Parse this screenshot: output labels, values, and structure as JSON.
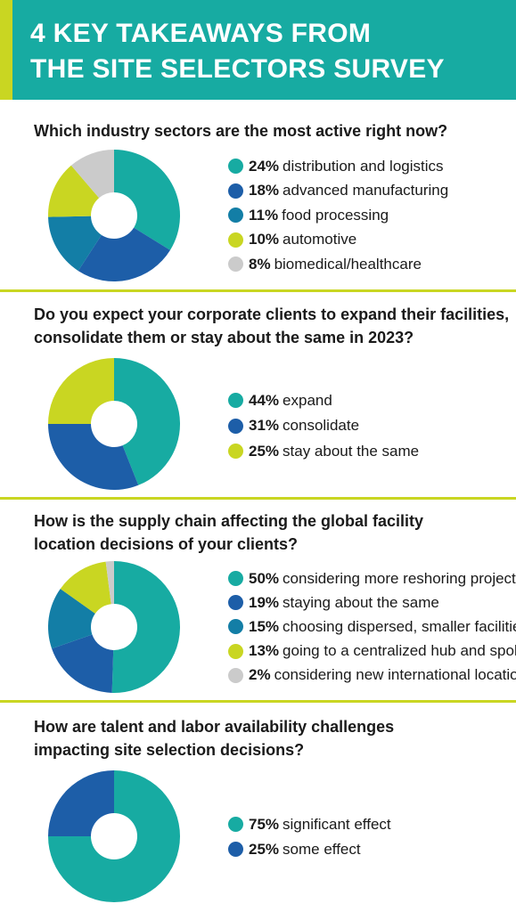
{
  "header": {
    "title_line1": "4 KEY TAKEAWAYS FROM",
    "title_line2": "THE SITE SELECTORS SURVEY"
  },
  "colors": {
    "teal": "#17aba2",
    "dark_blue": "#1d5ea8",
    "mid_blue": "#137ea6",
    "lime": "#c9d622",
    "gray": "#cbcbcb"
  },
  "chart_data": [
    {
      "type": "pie",
      "donut": true,
      "title_lines": [
        "Which industry sectors are the most active right now?"
      ],
      "slices": [
        {
          "pct_label": "24%",
          "value": 24,
          "label": "distribution and logistics",
          "color": "#17aba2"
        },
        {
          "pct_label": "18%",
          "value": 18,
          "label": "advanced manufacturing",
          "color": "#1d5ea8"
        },
        {
          "pct_label": "11%",
          "value": 11,
          "label": "food processing",
          "color": "#137ea6"
        },
        {
          "pct_label": "10%",
          "value": 10,
          "label": "automotive",
          "color": "#c9d622"
        },
        {
          "pct_label": "8%",
          "value": 8,
          "label": "biomedical/healthcare",
          "color": "#cbcbcb"
        }
      ]
    },
    {
      "type": "pie",
      "donut": true,
      "title_lines": [
        "Do you expect your corporate clients to expand their facilities,",
        "consolidate them or stay about the same in 2023?"
      ],
      "slices": [
        {
          "pct_label": "44%",
          "value": 44,
          "label": "expand",
          "color": "#17aba2"
        },
        {
          "pct_label": "31%",
          "value": 31,
          "label": "consolidate",
          "color": "#1d5ea8"
        },
        {
          "pct_label": "25%",
          "value": 25,
          "label": "stay about the same",
          "color": "#c9d622"
        }
      ]
    },
    {
      "type": "pie",
      "donut": true,
      "title_lines": [
        "How is the supply chain affecting the global facility",
        "location decisions of your clients?"
      ],
      "slices": [
        {
          "pct_label": "50%",
          "value": 50,
          "label": "considering more reshoring projects",
          "color": "#17aba2"
        },
        {
          "pct_label": "19%",
          "value": 19,
          "label": "staying about the same",
          "color": "#1d5ea8"
        },
        {
          "pct_label": "15%",
          "value": 15,
          "label": "choosing dispersed, smaller facilities",
          "color": "#137ea6"
        },
        {
          "pct_label": "13%",
          "value": 13,
          "label": "going to a centralized hub and spoke",
          "color": "#c9d622"
        },
        {
          "pct_label": "2%",
          "value": 2,
          "label": "considering new international locations",
          "color": "#cbcbcb"
        }
      ]
    },
    {
      "type": "pie",
      "donut": true,
      "title_lines": [
        "How are talent and labor availability challenges",
        "impacting site selection decisions?"
      ],
      "slices": [
        {
          "pct_label": "75%",
          "value": 75,
          "label": "significant effect",
          "color": "#17aba2"
        },
        {
          "pct_label": "25%",
          "value": 25,
          "label": "some effect",
          "color": "#1d5ea8"
        }
      ]
    }
  ]
}
